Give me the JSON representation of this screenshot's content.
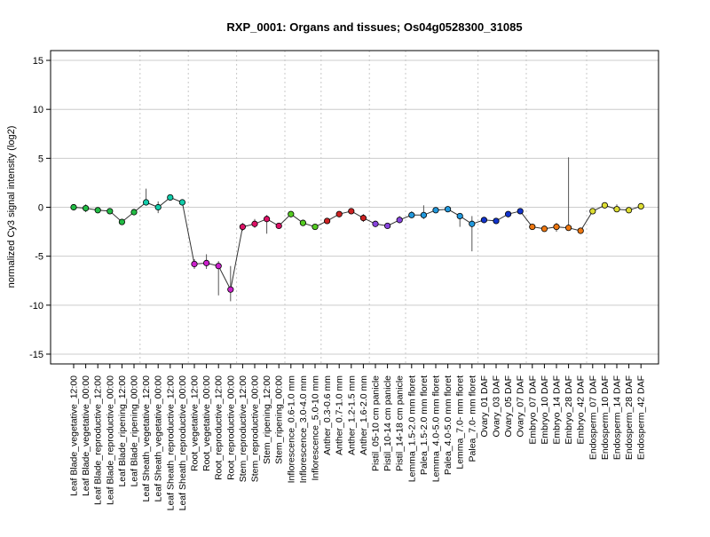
{
  "chart_data": {
    "type": "line",
    "title": "RXP_0001: Organs and tissues; Os04g0528300_31085",
    "ylabel": "normalized Cy3 signal intensity (log2)",
    "xlabel": "",
    "ylim": [
      -16,
      16
    ],
    "yticks": [
      -15,
      -10,
      -5,
      0,
      5,
      10,
      15
    ],
    "grid": true,
    "categories": [
      "Leaf Blade_vegetative_12:00",
      "Leaf Blade_vegetative_00:00",
      "Leaf Blade_reproductive_12:00",
      "Leaf Blade_reproductive_00:00",
      "Leaf Blade_ripening_12:00",
      "Leaf Blade_ripening_00:00",
      "Leaf Sheath_vegetative_12:00",
      "Leaf Sheath_vegetative_00:00",
      "Leaf Sheath_reproductive_12:00",
      "Leaf Sheath_reproductive_00:00",
      "Root_vegetative_12:00",
      "Root_vegetative_00:00",
      "Root_reproductive_12:00",
      "Root_reproductive_00:00",
      "Stem_reproductive_12:00",
      "Stem_reproductive_00:00",
      "Stem_ripening_12:00",
      "Stem_ripening_00:00",
      "Inflorescence_0.6-1.0 mm",
      "Inflorescence_3.0-4.0 mm",
      "Inflorescence_5.0-10 mm",
      "Anther_0.3-0.6 mm",
      "Anther_0.7-1.0 mm",
      "Anther_1.2-1.5 mm",
      "Anther_1.6-2.0 mm",
      "Pistil_05-10 cm panicle",
      "Pistil_10-14 cm panicle",
      "Pistil_14-18 cm panicle",
      "Lemma_1.5-2.0 mm floret",
      "Palea_1.5-2.0 mm floret",
      "Lemma_4.0-5.0 mm floret",
      "Palea_4.0-5.0 mm floret",
      "Lemma_7.0- mm floret",
      "Palea_7.0- mm floret",
      "Ovary_01 DAF",
      "Ovary_03 DAF",
      "Ovary_05 DAF",
      "Ovary_07 DAF",
      "Embryo_07 DAF",
      "Embryo_10 DAF",
      "Embryo_14 DAF",
      "Embryo_28 DAF",
      "Embryo_42 DAF",
      "Endosperm_07 DAF",
      "Endosperm_10 DAF",
      "Endosperm_14 DAF",
      "Endosperm_28 DAF",
      "Endosperm_42 DAF"
    ],
    "series": [
      {
        "values": [
          0.0,
          -0.1,
          -0.3,
          -0.4,
          -1.5,
          -0.5,
          0.5,
          0.0,
          1.0,
          0.5,
          -5.8,
          -5.7,
          -6.0,
          -8.4,
          -2.0,
          -1.7,
          -1.2,
          -1.9,
          -0.7,
          -1.6,
          -2.0,
          -1.4,
          -0.7,
          -0.4,
          -1.1,
          -1.7,
          -1.9,
          -1.3,
          -0.8,
          -0.8,
          -0.3,
          -0.2,
          -0.9,
          -1.7,
          -1.3,
          -1.4,
          -0.7,
          -0.4,
          -2.0,
          -2.2,
          -2.0,
          -2.1,
          -2.4,
          -0.4,
          0.2,
          -0.2,
          -0.3,
          0.1
        ],
        "err_low": [
          -0.2,
          -0.5,
          -0.5,
          -0.5,
          -1.7,
          -0.7,
          0.2,
          -0.6,
          0.7,
          0.3,
          -6.3,
          -6.3,
          -9.0,
          -9.6,
          -2.4,
          -2.1,
          -2.7,
          -2.2,
          -1.0,
          -1.8,
          -2.2,
          -1.6,
          -0.9,
          -0.6,
          -1.5,
          -1.9,
          -2.1,
          -1.6,
          -1.1,
          -1.2,
          -0.5,
          -0.4,
          -2.0,
          -4.5,
          -1.5,
          -1.6,
          -1.0,
          -0.6,
          -2.2,
          -2.4,
          -2.5,
          -2.3,
          -2.6,
          -0.6,
          -0.1,
          -0.5,
          -0.5,
          -0.1
        ],
        "err_high": [
          0.2,
          0.3,
          0.0,
          -0.2,
          -1.2,
          -0.3,
          1.9,
          0.6,
          1.3,
          0.7,
          -5.3,
          -4.8,
          -5.5,
          -6.0,
          -1.6,
          -1.2,
          -0.8,
          -1.6,
          -0.4,
          -1.4,
          -1.8,
          -1.2,
          -0.5,
          -0.2,
          -0.7,
          -1.5,
          -1.7,
          -0.9,
          -0.4,
          0.2,
          -0.1,
          0.0,
          -0.6,
          -0.9,
          -1.1,
          -1.2,
          -0.4,
          -0.2,
          -1.8,
          -2.0,
          -1.6,
          5.1,
          -2.2,
          -0.2,
          0.4,
          0.3,
          -0.1,
          0.3
        ]
      }
    ],
    "group_colors": {
      "Leaf Blade": "#22bb44",
      "Leaf Sheath": "#11ccaa",
      "Root": "#cc22cc",
      "Stem": "#dd1166",
      "Inflorescence": "#55cc22",
      "Anther": "#cc2222",
      "Pistil": "#8844dd",
      "Lemma_Palea": "#2299dd",
      "Ovary": "#1133cc",
      "Embryo": "#ee7711",
      "Endosperm": "#dddd33"
    },
    "group_boundaries_after_index": [
      5,
      9,
      13,
      17,
      20,
      24,
      27,
      33,
      37,
      42
    ]
  }
}
